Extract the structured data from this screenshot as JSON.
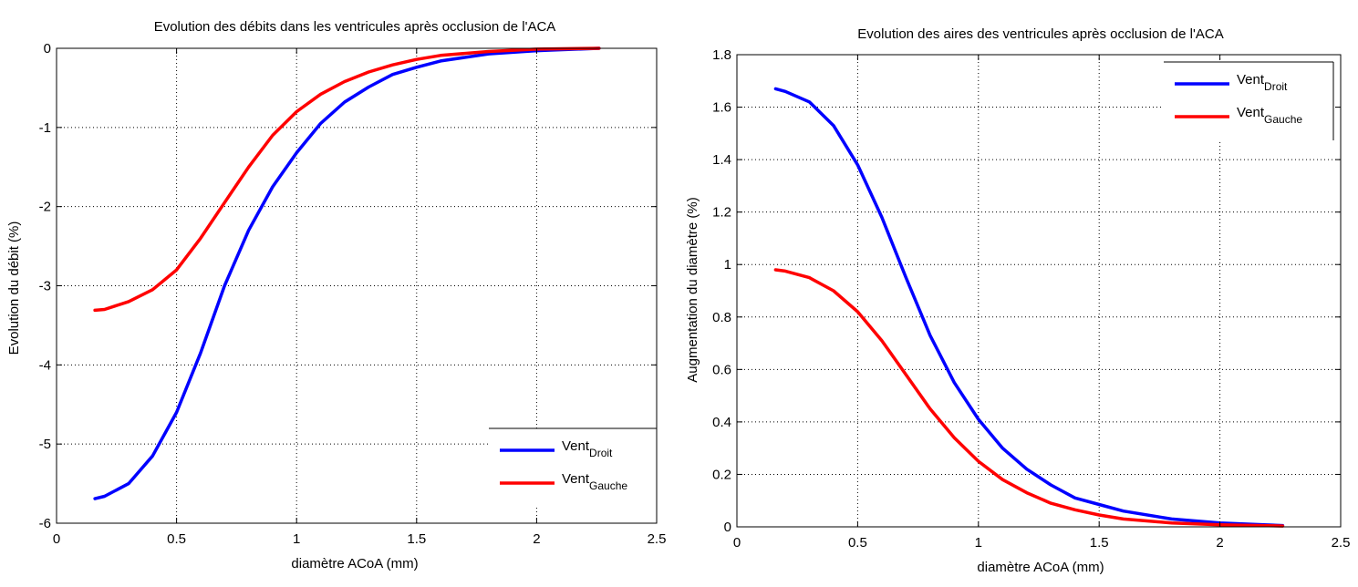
{
  "chart_data": [
    {
      "type": "line",
      "title": "Evolution des débits dans les ventricules après occlusion de l'ACA",
      "xlabel": "diamètre ACoA (mm)",
      "ylabel": "Evolution du débit (%)",
      "xlim": [
        0,
        2.5
      ],
      "ylim": [
        -6,
        0
      ],
      "xticks": [
        0,
        0.5,
        1,
        1.5,
        2,
        2.5
      ],
      "xtick_labels": [
        "0",
        "0.5",
        "1",
        "1.5",
        "2",
        "2.5"
      ],
      "yticks": [
        -6,
        -5,
        -4,
        -3,
        -2,
        -1,
        0
      ],
      "ytick_labels": [
        "-6",
        "-5",
        "-4",
        "-3",
        "-2",
        "-1",
        "0"
      ],
      "grid": true,
      "legend_position": "bottom-right",
      "colors": {
        "droit": "#0000ff",
        "gauche": "#ff0000"
      },
      "series": [
        {
          "name": "Vent",
          "subscript": "Droit",
          "color": "#0000ff",
          "x": [
            0.16,
            0.2,
            0.3,
            0.4,
            0.5,
            0.6,
            0.7,
            0.8,
            0.9,
            1.0,
            1.1,
            1.2,
            1.3,
            1.4,
            1.5,
            1.6,
            1.8,
            2.0,
            2.26
          ],
          "y": [
            -5.69,
            -5.66,
            -5.5,
            -5.15,
            -4.6,
            -3.85,
            -3.0,
            -2.3,
            -1.75,
            -1.32,
            -0.95,
            -0.68,
            -0.49,
            -0.33,
            -0.24,
            -0.16,
            -0.07,
            -0.03,
            0
          ]
        },
        {
          "name": "Vent",
          "subscript": "Gauche",
          "color": "#ff0000",
          "x": [
            0.16,
            0.2,
            0.3,
            0.4,
            0.5,
            0.6,
            0.7,
            0.8,
            0.9,
            1.0,
            1.1,
            1.2,
            1.3,
            1.4,
            1.5,
            1.6,
            1.8,
            2.0,
            2.26
          ],
          "y": [
            -3.31,
            -3.3,
            -3.2,
            -3.05,
            -2.8,
            -2.4,
            -1.95,
            -1.5,
            -1.1,
            -0.8,
            -0.58,
            -0.42,
            -0.3,
            -0.21,
            -0.14,
            -0.09,
            -0.04,
            -0.01,
            0
          ]
        }
      ]
    },
    {
      "type": "line",
      "title": "Evolution des aires des ventricules après occlusion de l'ACA",
      "xlabel": "diamètre ACoA (mm)",
      "ylabel": "Augmentation du diamètre (%)",
      "xlim": [
        0,
        2.5
      ],
      "ylim": [
        0,
        1.8
      ],
      "xticks": [
        0,
        0.5,
        1,
        1.5,
        2,
        2.5
      ],
      "xtick_labels": [
        "0",
        "0.5",
        "1",
        "1.5",
        "2",
        "2.5"
      ],
      "yticks": [
        0,
        0.2,
        0.4,
        0.6,
        0.8,
        1,
        1.2,
        1.4,
        1.6,
        1.8
      ],
      "ytick_labels": [
        "0",
        "0.2",
        "0.4",
        "0.6",
        "0.8",
        "1",
        "1.2",
        "1.4",
        "1.6",
        "1.8"
      ],
      "grid": true,
      "legend_position": "top-right",
      "colors": {
        "droit": "#0000ff",
        "gauche": "#ff0000"
      },
      "series": [
        {
          "name": "Vent",
          "subscript": "Droit",
          "color": "#0000ff",
          "x": [
            0.16,
            0.2,
            0.3,
            0.4,
            0.5,
            0.6,
            0.7,
            0.8,
            0.9,
            1.0,
            1.1,
            1.2,
            1.3,
            1.4,
            1.5,
            1.6,
            1.8,
            2.0,
            2.26
          ],
          "y": [
            1.67,
            1.66,
            1.62,
            1.53,
            1.38,
            1.18,
            0.95,
            0.73,
            0.55,
            0.41,
            0.3,
            0.22,
            0.16,
            0.11,
            0.085,
            0.06,
            0.03,
            0.015,
            0.005
          ]
        },
        {
          "name": "Vent",
          "subscript": "Gauche",
          "color": "#ff0000",
          "x": [
            0.16,
            0.2,
            0.3,
            0.4,
            0.5,
            0.6,
            0.7,
            0.8,
            0.9,
            1.0,
            1.1,
            1.2,
            1.3,
            1.4,
            1.5,
            1.6,
            1.8,
            2.0,
            2.26
          ],
          "y": [
            0.98,
            0.975,
            0.95,
            0.9,
            0.82,
            0.71,
            0.58,
            0.45,
            0.34,
            0.25,
            0.18,
            0.13,
            0.09,
            0.065,
            0.045,
            0.03,
            0.015,
            0.008,
            0.003
          ]
        }
      ]
    }
  ]
}
